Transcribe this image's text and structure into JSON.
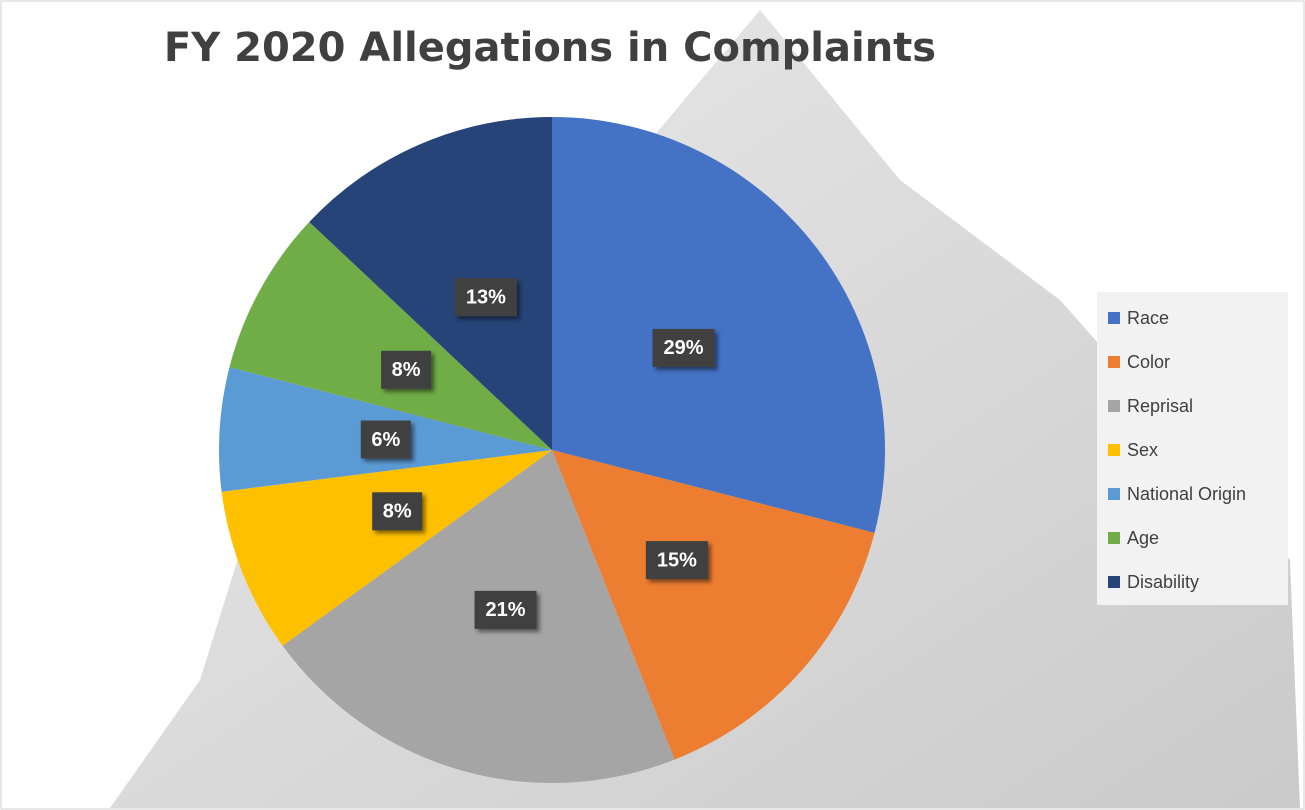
{
  "chart_data": {
    "type": "pie",
    "title": "FY 2020 Allegations in Complaints",
    "categories": [
      "Race",
      "Color",
      "Reprisal",
      "Sex",
      "National Origin",
      "Age",
      "Disability"
    ],
    "values": [
      29,
      15,
      21,
      8,
      6,
      8,
      13
    ],
    "value_labels": [
      "29%",
      "15%",
      "21%",
      "8%",
      "6%",
      "8%",
      "13%"
    ],
    "colors": [
      "#4472c4",
      "#ed7d31",
      "#a5a5a5",
      "#ffc000",
      "#5b9bd5",
      "#70ad47",
      "#264478"
    ],
    "legend": "right"
  }
}
